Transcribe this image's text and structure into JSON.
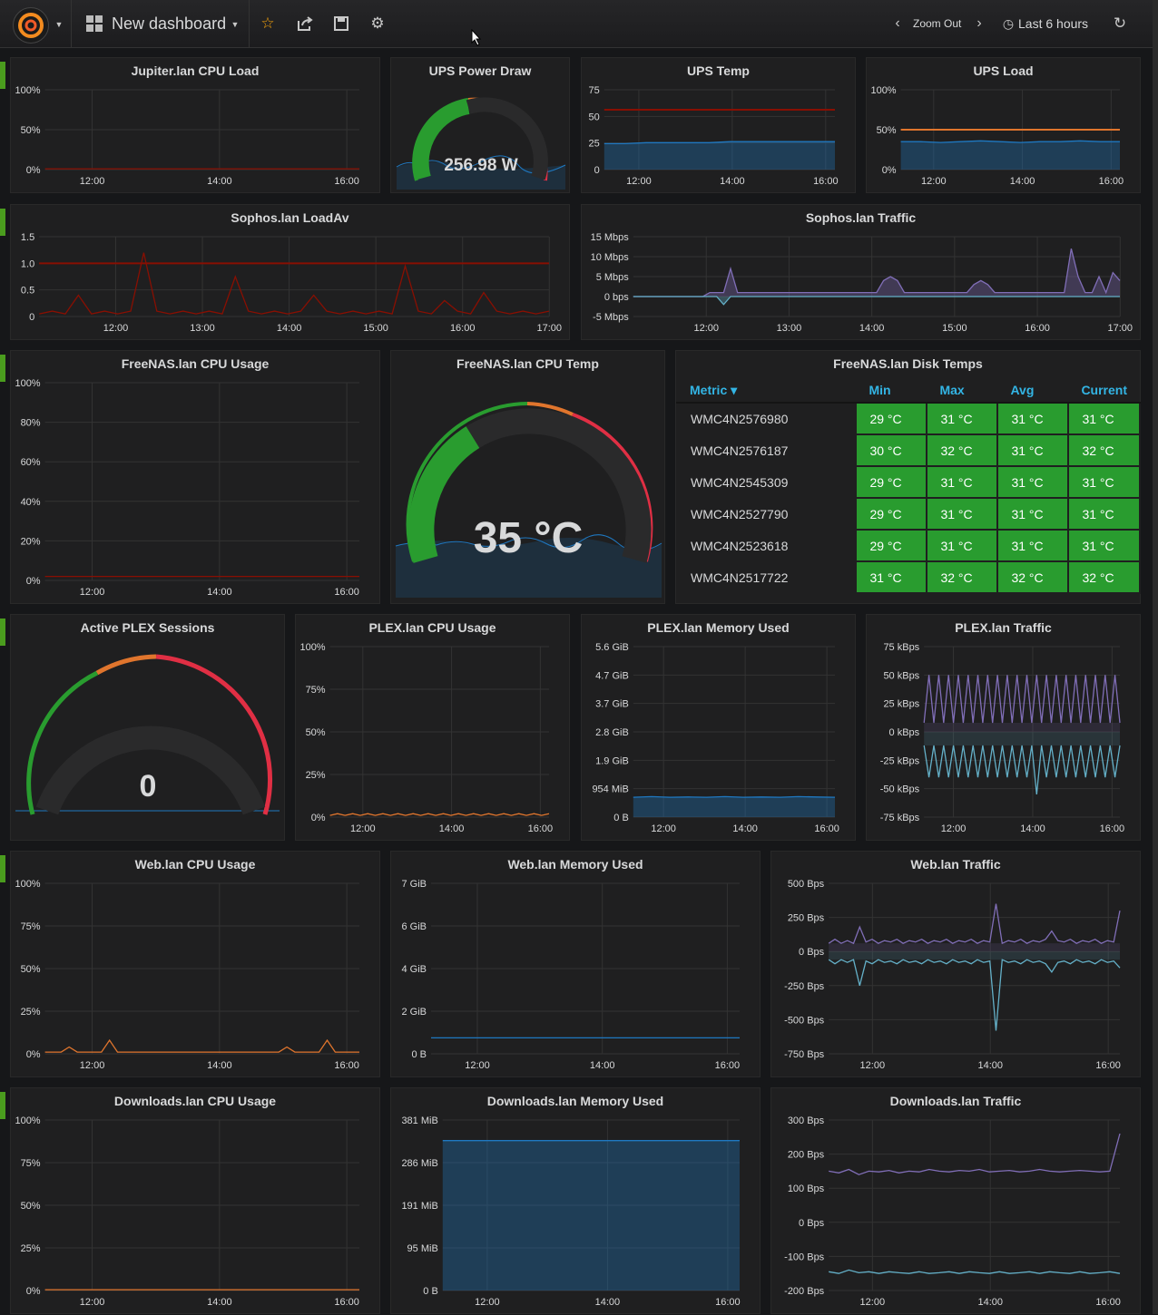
{
  "topbar": {
    "dashboard_title": "New dashboard",
    "zoom_out": "Zoom Out",
    "time_range": "Last 6 hours"
  },
  "colors": {
    "green": "#299c2f",
    "orange": "#e0752d",
    "red": "#e02f44",
    "blue": "#1f78c1",
    "purple": "#806eb7",
    "cyan": "#64b0c8",
    "threshold_red": "#890f02"
  },
  "panels": {
    "jupiter_cpu": {
      "title": "Jupiter.lan CPU Load"
    },
    "ups_power": {
      "title": "UPS Power Draw",
      "value": "256.98 W"
    },
    "ups_temp": {
      "title": "UPS Temp"
    },
    "ups_load": {
      "title": "UPS Load"
    },
    "sophos_load": {
      "title": "Sophos.lan LoadAv"
    },
    "sophos_traffic": {
      "title": "Sophos.lan Traffic"
    },
    "freenas_cpu": {
      "title": "FreeNAS.lan CPU Usage"
    },
    "freenas_temp": {
      "title": "FreeNAS.lan CPU Temp",
      "value": "35 °C"
    },
    "freenas_disks": {
      "title": "FreeNAS.lan Disk Temps",
      "headers": [
        "Metric ▾",
        "Min",
        "Max",
        "Avg",
        "Current"
      ],
      "rows": [
        [
          "WMC4N2576980",
          "29 °C",
          "31 °C",
          "31 °C",
          "31 °C"
        ],
        [
          "WMC4N2576187",
          "30 °C",
          "32 °C",
          "31 °C",
          "32 °C"
        ],
        [
          "WMC4N2545309",
          "29 °C",
          "31 °C",
          "31 °C",
          "31 °C"
        ],
        [
          "WMC4N2527790",
          "29 °C",
          "31 °C",
          "31 °C",
          "31 °C"
        ],
        [
          "WMC4N2523618",
          "29 °C",
          "31 °C",
          "31 °C",
          "31 °C"
        ],
        [
          "WMC4N2517722",
          "31 °C",
          "32 °C",
          "32 °C",
          "32 °C"
        ]
      ]
    },
    "plex_sessions": {
      "title": "Active PLEX Sessions",
      "value": "0"
    },
    "plex_cpu": {
      "title": "PLEX.lan CPU Usage"
    },
    "plex_mem": {
      "title": "PLEX.lan Memory Used"
    },
    "plex_traffic": {
      "title": "PLEX.lan Traffic"
    },
    "web_cpu": {
      "title": "Web.lan CPU Usage"
    },
    "web_mem": {
      "title": "Web.lan Memory Used"
    },
    "web_traffic": {
      "title": "Web.lan Traffic"
    },
    "dl_cpu": {
      "title": "Downloads.lan CPU Usage"
    },
    "dl_mem": {
      "title": "Downloads.lan Memory Used"
    },
    "dl_traffic": {
      "title": "Downloads.lan Traffic"
    }
  },
  "chart_data": [
    {
      "id": "jupiter_cpu",
      "type": "line",
      "yticks": [
        "100%",
        "50%",
        "0%"
      ],
      "xticks": [
        "12:00",
        "14:00",
        "16:00"
      ],
      "series": [
        {
          "color": "#890f02",
          "values": [
            1,
            1,
            1,
            1,
            1,
            1,
            1,
            1,
            1,
            1,
            1,
            1
          ]
        }
      ],
      "ylim": [
        0,
        100
      ]
    },
    {
      "id": "ups_temp",
      "type": "area",
      "yticks": [
        "75",
        "50",
        "25",
        "0"
      ],
      "xticks": [
        "12:00",
        "14:00",
        "16:00"
      ],
      "threshold": 60,
      "series": [
        {
          "color": "#1f78c1",
          "values": [
            26,
            26,
            27,
            27,
            27,
            27,
            28,
            28,
            28,
            28,
            28,
            28
          ]
        }
      ],
      "ylim": [
        0,
        80
      ]
    },
    {
      "id": "ups_load",
      "type": "area",
      "yticks": [
        "100%",
        "50%",
        "0%"
      ],
      "xticks": [
        "12:00",
        "14:00",
        "16:00"
      ],
      "threshold": 50,
      "series": [
        {
          "color": "#1f78c1",
          "values": [
            35,
            35,
            34,
            35,
            36,
            35,
            34,
            35,
            35,
            36,
            35,
            35
          ]
        }
      ],
      "ylim": [
        0,
        100
      ]
    },
    {
      "id": "sophos_load",
      "type": "line",
      "yticks": [
        "1.5",
        "1.0",
        "0.5",
        "0"
      ],
      "xticks": [
        "12:00",
        "13:00",
        "14:00",
        "15:00",
        "16:00",
        "17:00"
      ],
      "threshold": 1.0,
      "series": [
        {
          "color": "#890f02",
          "values": [
            0.05,
            0.1,
            0.05,
            0.4,
            0.05,
            0.1,
            0.05,
            0.1,
            1.2,
            0.1,
            0.05,
            0.1,
            0.05,
            0.1,
            0.05,
            0.75,
            0.1,
            0.05,
            0.1,
            0.05,
            0.1,
            0.4,
            0.1,
            0.05,
            0.1,
            0.05,
            0.1,
            0.05,
            0.95,
            0.1,
            0.05,
            0.3,
            0.1,
            0.05,
            0.45,
            0.1,
            0.05,
            0.1,
            0.05,
            0.1
          ]
        }
      ],
      "ylim": [
        0,
        1.5
      ]
    },
    {
      "id": "sophos_traffic",
      "type": "area",
      "yticks": [
        "15 Mbps",
        "10 Mbps",
        "5 Mbps",
        "0 bps",
        "-5 Mbps"
      ],
      "xticks": [
        "12:00",
        "13:00",
        "14:00",
        "15:00",
        "16:00",
        "17:00"
      ],
      "series": [
        {
          "color": "#806eb7",
          "values": [
            0,
            0,
            0,
            0,
            0,
            0,
            0,
            0,
            0,
            0,
            0,
            1,
            1,
            1,
            7,
            1,
            1,
            1,
            1,
            1,
            1,
            1,
            1,
            1,
            1,
            1,
            1,
            1,
            1,
            1,
            1,
            1,
            1,
            1,
            1,
            1,
            4,
            5,
            4,
            1,
            1,
            1,
            1,
            1,
            1,
            1,
            1,
            1,
            1,
            3,
            4,
            3,
            1,
            1,
            1,
            1,
            1,
            1,
            1,
            1,
            1,
            1,
            1,
            12,
            5,
            1,
            1,
            5,
            1,
            6,
            4
          ]
        },
        {
          "color": "#64b0c8",
          "values": [
            0,
            0,
            0,
            0,
            0,
            0,
            0,
            0,
            0,
            0,
            0,
            0,
            0,
            -2,
            0,
            0,
            0,
            0,
            0,
            0,
            0,
            0,
            0,
            0,
            0,
            0,
            0,
            0,
            0,
            0,
            0,
            0,
            0,
            0,
            0,
            0,
            0,
            0,
            0,
            0,
            0,
            0,
            0,
            0,
            0,
            0,
            0,
            0,
            0,
            0,
            0,
            0,
            0,
            0,
            0,
            0,
            0,
            0,
            0,
            0,
            0,
            0,
            0,
            0,
            0,
            0,
            0,
            0,
            0,
            0,
            0
          ]
        }
      ],
      "ylim": [
        -5,
        15
      ]
    },
    {
      "id": "freenas_cpu",
      "type": "line",
      "yticks": [
        "100%",
        "80%",
        "60%",
        "40%",
        "20%",
        "0%"
      ],
      "xticks": [
        "12:00",
        "14:00",
        "16:00"
      ],
      "series": [
        {
          "color": "#890f02",
          "values": [
            2,
            2,
            2,
            2,
            2,
            2,
            2,
            2,
            2,
            2,
            2,
            2
          ]
        }
      ],
      "ylim": [
        0,
        100
      ]
    },
    {
      "id": "plex_cpu",
      "type": "line",
      "yticks": [
        "100%",
        "75%",
        "50%",
        "25%",
        "0%"
      ],
      "xticks": [
        "12:00",
        "14:00",
        "16:00"
      ],
      "series": [
        {
          "color": "#e0752d",
          "values": [
            1,
            2,
            1,
            2,
            1,
            2,
            1,
            2,
            1,
            2,
            1,
            2,
            1,
            2,
            1,
            2,
            1,
            2,
            1,
            2,
            1,
            2,
            1,
            2,
            1,
            2,
            1,
            2,
            1,
            2
          ]
        }
      ],
      "ylim": [
        0,
        100
      ]
    },
    {
      "id": "plex_mem",
      "type": "area",
      "yticks": [
        "5.6 GiB",
        "4.7 GiB",
        "3.7 GiB",
        "2.8 GiB",
        "1.9 GiB",
        "954 MiB",
        "0 B"
      ],
      "xticks": [
        "12:00",
        "14:00",
        "16:00"
      ],
      "series": [
        {
          "color": "#1f78c1",
          "values": [
            0.7,
            0.72,
            0.7,
            0.71,
            0.7,
            0.72,
            0.7,
            0.71,
            0.7,
            0.72,
            0.71,
            0.7
          ]
        }
      ],
      "ylim": [
        0,
        6
      ]
    },
    {
      "id": "plex_traffic",
      "type": "spikes",
      "yticks": [
        "75 kBps",
        "50 kBps",
        "25 kBps",
        "0 kBps",
        "-25 kBps",
        "-50 kBps",
        "-75 kBps"
      ],
      "xticks": [
        "12:00",
        "14:00",
        "16:00"
      ],
      "series": [
        {
          "color": "#806eb7",
          "values": [
            8,
            50,
            8,
            50,
            8,
            50,
            8,
            50,
            8,
            50,
            8,
            50,
            8,
            50,
            8,
            50,
            8,
            50,
            8,
            50,
            8,
            50,
            8,
            50,
            8,
            50,
            8,
            50,
            8,
            50,
            8,
            50,
            8,
            50,
            8,
            50,
            8,
            50,
            8,
            50,
            8
          ]
        },
        {
          "color": "#64b0c8",
          "values": [
            -12,
            -40,
            -12,
            -40,
            -12,
            -40,
            -12,
            -40,
            -12,
            -40,
            -12,
            -40,
            -12,
            -40,
            -12,
            -40,
            -12,
            -40,
            -12,
            -40,
            -12,
            -40,
            -12,
            -55,
            -12,
            -40,
            -12,
            -40,
            -12,
            -40,
            -12,
            -40,
            -12,
            -40,
            -12,
            -40,
            -12,
            -40,
            -12,
            -40,
            -12
          ]
        }
      ],
      "ylim": [
        -75,
        75
      ]
    },
    {
      "id": "web_cpu",
      "type": "line",
      "yticks": [
        "100%",
        "75%",
        "50%",
        "25%",
        "0%"
      ],
      "xticks": [
        "12:00",
        "14:00",
        "16:00"
      ],
      "series": [
        {
          "color": "#e0752d",
          "values": [
            1,
            1,
            1,
            4,
            1,
            1,
            1,
            1,
            8,
            1,
            1,
            1,
            1,
            1,
            1,
            1,
            1,
            1,
            1,
            1,
            1,
            1,
            1,
            1,
            1,
            1,
            1,
            1,
            1,
            1,
            4,
            1,
            1,
            1,
            1,
            8,
            1,
            1,
            1,
            1
          ]
        }
      ],
      "ylim": [
        0,
        100
      ]
    },
    {
      "id": "web_mem",
      "type": "line",
      "yticks": [
        "7 GiB",
        "6 GiB",
        "4 GiB",
        "2 GiB",
        "0 B"
      ],
      "xticks": [
        "12:00",
        "14:00",
        "16:00"
      ],
      "series": [
        {
          "color": "#1f78c1",
          "values": [
            0.75,
            0.75,
            0.75,
            0.75,
            0.75,
            0.75,
            0.75,
            0.75,
            0.75,
            0.75,
            0.75,
            0.75
          ]
        }
      ],
      "ylim": [
        0,
        8
      ]
    },
    {
      "id": "web_traffic",
      "type": "spikes",
      "yticks": [
        "500 Bps",
        "250 Bps",
        "0 Bps",
        "-250 Bps",
        "-500 Bps",
        "-750 Bps"
      ],
      "xticks": [
        "12:00",
        "14:00",
        "16:00"
      ],
      "series": [
        {
          "color": "#806eb7",
          "values": [
            60,
            90,
            60,
            80,
            60,
            180,
            70,
            90,
            60,
            80,
            70,
            90,
            60,
            80,
            70,
            90,
            60,
            80,
            70,
            90,
            60,
            80,
            70,
            90,
            60,
            80,
            70,
            350,
            60,
            80,
            70,
            90,
            60,
            80,
            70,
            90,
            150,
            80,
            70,
            90,
            60,
            80,
            70,
            90,
            60,
            80,
            70,
            300
          ]
        },
        {
          "color": "#64b0c8",
          "values": [
            -60,
            -90,
            -60,
            -80,
            -60,
            -250,
            -70,
            -90,
            -60,
            -80,
            -70,
            -90,
            -60,
            -80,
            -70,
            -90,
            -60,
            -80,
            -70,
            -90,
            -60,
            -80,
            -70,
            -90,
            -60,
            -80,
            -70,
            -580,
            -60,
            -80,
            -70,
            -90,
            -60,
            -80,
            -70,
            -90,
            -150,
            -80,
            -70,
            -90,
            -60,
            -80,
            -70,
            -90,
            -60,
            -80,
            -70,
            -120
          ]
        }
      ],
      "ylim": [
        -750,
        500
      ]
    },
    {
      "id": "dl_cpu",
      "type": "line",
      "yticks": [
        "100%",
        "75%",
        "50%",
        "25%",
        "0%"
      ],
      "xticks": [
        "12:00",
        "14:00",
        "16:00"
      ],
      "series": [
        {
          "color": "#e0752d",
          "values": [
            0.5,
            0.5,
            0.5,
            0.5,
            0.5,
            0.5,
            0.5,
            0.5,
            0.5,
            0.5,
            0.5,
            0.5
          ]
        }
      ],
      "ylim": [
        0,
        100
      ]
    },
    {
      "id": "dl_mem",
      "type": "area",
      "yticks": [
        "381 MiB",
        "286 MiB",
        "191 MiB",
        "95 MiB",
        "0 B"
      ],
      "xticks": [
        "12:00",
        "14:00",
        "16:00"
      ],
      "series": [
        {
          "color": "#1f78c1",
          "values": [
            335,
            335,
            335,
            335,
            335,
            335,
            335,
            335,
            335,
            335,
            335,
            335
          ]
        }
      ],
      "ylim": [
        0,
        381
      ]
    },
    {
      "id": "dl_traffic",
      "type": "line",
      "yticks": [
        "300 Bps",
        "200 Bps",
        "100 Bps",
        "0 Bps",
        "-100 Bps",
        "-200 Bps"
      ],
      "xticks": [
        "12:00",
        "14:00",
        "16:00"
      ],
      "series": [
        {
          "color": "#806eb7",
          "values": [
            150,
            145,
            155,
            140,
            150,
            148,
            152,
            145,
            150,
            148,
            155,
            150,
            148,
            152,
            150,
            155,
            148,
            150,
            152,
            148,
            150,
            155,
            150,
            148,
            150,
            152,
            150,
            148,
            150,
            260
          ]
        },
        {
          "color": "#64b0c8",
          "values": [
            -145,
            -150,
            -140,
            -148,
            -145,
            -150,
            -145,
            -148,
            -150,
            -145,
            -150,
            -148,
            -145,
            -150,
            -145,
            -148,
            -150,
            -145,
            -150,
            -148,
            -145,
            -150,
            -145,
            -148,
            -150,
            -145,
            -150,
            -148,
            -145,
            -150
          ]
        }
      ],
      "ylim": [
        -200,
        300
      ]
    }
  ]
}
